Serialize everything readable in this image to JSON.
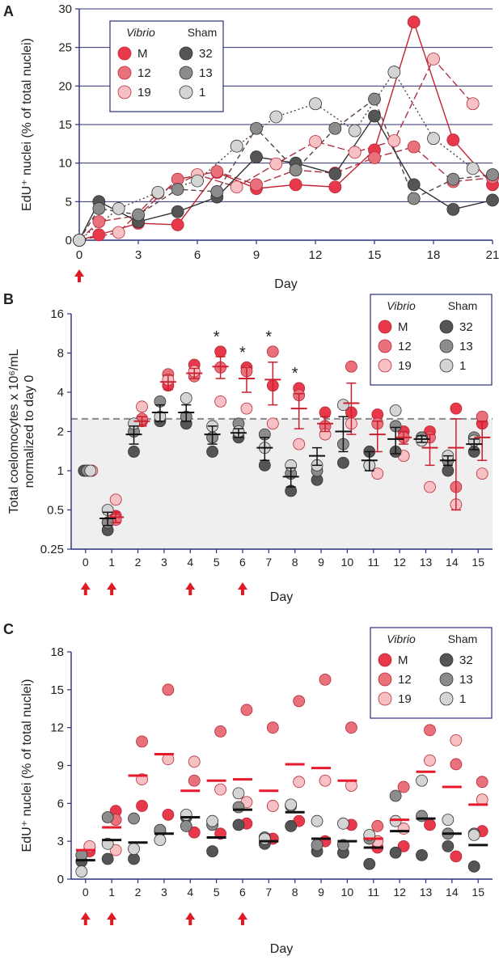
{
  "chart_data": [
    {
      "panel": "A",
      "type": "line",
      "xlabel": "Day",
      "ylabel": "EdU⁺ nuclei (% of total nuclei)",
      "xticks": [
        0,
        3,
        6,
        9,
        12,
        15,
        18,
        21
      ],
      "yticks": [
        0,
        5,
        10,
        15,
        20,
        25,
        30
      ],
      "xlim": [
        0,
        21
      ],
      "ylim": [
        0,
        30
      ],
      "grid": "horizontal",
      "legend": {
        "placement": "top-left",
        "groups": [
          {
            "title": "Vibrio",
            "entries": [
              "M",
              "12",
              "19"
            ]
          },
          {
            "title": "Sham",
            "entries": [
              "32",
              "13",
              "1"
            ]
          }
        ]
      },
      "arrows": [
        0
      ],
      "series": [
        {
          "name": "M",
          "group": "Vibrio",
          "color": "#e8394b",
          "dash": "solid",
          "x": [
            0,
            1,
            3,
            5,
            7,
            9,
            11,
            13,
            15,
            17,
            19,
            21
          ],
          "y": [
            0,
            0.7,
            2.2,
            2.0,
            8.8,
            6.7,
            7.2,
            6.9,
            11.7,
            28.3,
            13.0,
            7.2
          ]
        },
        {
          "name": "12",
          "group": "Vibrio",
          "color": "#e8717b",
          "dash": "long",
          "x": [
            0,
            1,
            3,
            5,
            7,
            9,
            11,
            13,
            15,
            17,
            19,
            21
          ],
          "y": [
            0,
            2.4,
            3.2,
            7.9,
            8.9,
            7.2,
            9.1,
            8.7,
            10.7,
            12.1,
            7.6,
            8.1
          ]
        },
        {
          "name": "19",
          "group": "Vibrio",
          "color": "#f7c1c4",
          "dash": "long",
          "x": [
            0,
            2,
            4,
            6,
            8,
            10,
            12,
            14,
            16,
            18,
            20
          ],
          "y": [
            0,
            1.0,
            6.1,
            8.5,
            6.9,
            9.9,
            12.8,
            11.4,
            12.9,
            23.5,
            17.7
          ]
        },
        {
          "name": "32",
          "group": "Sham",
          "color": "#555555",
          "dash": "solid",
          "x": [
            0,
            1,
            3,
            5,
            7,
            9,
            11,
            13,
            15,
            17,
            19,
            21
          ],
          "y": [
            0,
            5.0,
            2.4,
            3.7,
            5.6,
            10.8,
            10.0,
            8.6,
            16.1,
            7.2,
            4.0,
            5.2
          ]
        },
        {
          "name": "13",
          "group": "Sham",
          "color": "#8c8c8c",
          "dash": "dash",
          "x": [
            0,
            1,
            3,
            5,
            7,
            9,
            11,
            13,
            15,
            17,
            19,
            21
          ],
          "y": [
            0,
            4.1,
            3.3,
            6.6,
            6.3,
            14.5,
            9.1,
            14.5,
            18.3,
            5.4,
            7.9,
            8.5
          ]
        },
        {
          "name": "1",
          "group": "Sham",
          "color": "#d4d4d4",
          "dash": "dot",
          "x": [
            0,
            2,
            4,
            6,
            8,
            10,
            12,
            14,
            16,
            18,
            20
          ],
          "y": [
            0,
            4.1,
            6.2,
            7.7,
            12.2,
            16.0,
            17.7,
            14.2,
            21.8,
            13.2,
            9.3
          ]
        }
      ]
    },
    {
      "panel": "B",
      "type": "scatter",
      "xlabel": "Day",
      "ylabel": "Total coelomocytes x 10⁶/mL normalized to day 0",
      "ylabel_lines": [
        "Total coelomocytes x 10⁶/mL",
        "normalized to day 0"
      ],
      "yscale": "log2",
      "yticks": [
        0.25,
        0.5,
        1,
        2,
        4,
        8,
        16
      ],
      "ytick_labels": [
        "0.25",
        "0.5",
        "1",
        "2",
        "4",
        "8",
        "16"
      ],
      "ylim": [
        0.25,
        16
      ],
      "categories": [
        "0",
        "1",
        "2",
        "3",
        "4",
        "5",
        "6",
        "7",
        "8",
        "9",
        "10",
        "11",
        "12",
        "13",
        "14",
        "15"
      ],
      "threshold": 2.5,
      "shaded_below_threshold": true,
      "significance": [
        "5",
        "6",
        "7",
        "8"
      ],
      "arrows": [
        "0",
        "1",
        "4",
        "6"
      ],
      "legend": {
        "placement": "top-right",
        "groups": [
          {
            "title": "Vibrio",
            "entries": [
              "M",
              "12",
              "19"
            ]
          },
          {
            "title": "Sham",
            "entries": [
              "32",
              "13",
              "1"
            ]
          }
        ]
      },
      "series": [
        {
          "name": "M",
          "group": "Vibrio",
          "color": "#e8394b",
          "values": [
            1,
            0.45,
            2.4,
            4.5,
            6.5,
            8.2,
            6.2,
            4.5,
            4.3,
            2.8,
            2.8,
            2.7,
            2.0,
            2.0,
            3.0,
            2.3
          ]
        },
        {
          "name": "12",
          "group": "Vibrio",
          "color": "#e8717b",
          "values": [
            1,
            0.42,
            2.5,
            5.5,
            5.3,
            6.2,
            5.8,
            8.2,
            3.8,
            2.2,
            6.3,
            2.3,
            1.8,
            1.8,
            0.75,
            2.6
          ]
        },
        {
          "name": "19",
          "group": "Vibrio",
          "color": "#f7c1c4",
          "values": [
            1,
            0.6,
            3.1,
            5.0,
            5.8,
            3.4,
            3.0,
            2.3,
            1.6,
            1.9,
            2.3,
            0.95,
            1.3,
            0.75,
            0.55,
            0.95
          ]
        },
        {
          "name": "32",
          "group": "Sham",
          "color": "#555555",
          "values": [
            1,
            0.35,
            1.4,
            2.4,
            2.3,
            1.4,
            1.8,
            1.1,
            0.7,
            0.85,
            1.15,
            1.4,
            1.4,
            1.8,
            1.0,
            1.4
          ]
        },
        {
          "name": "13",
          "group": "Sham",
          "color": "#8c8c8c",
          "values": [
            1,
            0.4,
            2.0,
            3.4,
            2.6,
            1.8,
            2.3,
            1.9,
            0.95,
            1.0,
            1.6,
            1.1,
            2.2,
            1.8,
            1.2,
            1.8
          ]
        },
        {
          "name": "1",
          "group": "Sham",
          "color": "#d4d4d4",
          "values": [
            1,
            0.5,
            2.3,
            2.6,
            3.6,
            2.2,
            2.0,
            1.5,
            1.1,
            1.1,
            3.2,
            1.1,
            2.9,
            1.7,
            1.3,
            1.7
          ]
        }
      ],
      "means": [
        {
          "group": "Vibrio",
          "mean": [
            1,
            0.44,
            2.4,
            4.8,
            5.6,
            6.3,
            5.1,
            5.0,
            3.0,
            2.3,
            3.3,
            1.9,
            1.8,
            1.5,
            1.5,
            1.8
          ],
          "err": [
            0,
            0.04,
            0.2,
            0.6,
            0.5,
            1.2,
            1.1,
            1.8,
            0.9,
            0.3,
            1.4,
            0.5,
            0.2,
            0.4,
            1.0,
            0.6
          ]
        },
        {
          "group": "Sham",
          "mean": [
            1,
            0.43,
            1.9,
            2.8,
            2.8,
            1.9,
            1.95,
            1.5,
            0.9,
            1.3,
            2.0,
            1.2,
            1.75,
            1.75,
            1.2,
            1.6
          ],
          "err": [
            0,
            0.05,
            0.3,
            0.4,
            0.4,
            0.3,
            0.15,
            0.3,
            0.15,
            0.2,
            0.6,
            0.2,
            0.4,
            0.1,
            0.1,
            0.15
          ]
        }
      ]
    },
    {
      "panel": "C",
      "type": "scatter",
      "xlabel": "Day",
      "ylabel": "EdU⁺ nuclei (% of total nuclei)",
      "yticks": [
        0,
        3,
        6,
        9,
        12,
        15,
        18
      ],
      "ylim": [
        0,
        18
      ],
      "categories": [
        "0",
        "1",
        "2",
        "3",
        "4",
        "5",
        "6",
        "7",
        "8",
        "9",
        "10",
        "11",
        "12",
        "13",
        "14",
        "15"
      ],
      "arrows": [
        "0",
        "1",
        "4",
        "6"
      ],
      "legend": {
        "placement": "top-right",
        "groups": [
          {
            "title": "Vibrio",
            "entries": [
              "M",
              "12",
              "19"
            ]
          },
          {
            "title": "Sham",
            "entries": [
              "32",
              "13",
              "1"
            ]
          }
        ]
      },
      "series": [
        {
          "name": "M",
          "group": "Vibrio",
          "color": "#e8394b",
          "values": [
            2.2,
            5.4,
            5.8,
            5.1,
            3.7,
            3.6,
            4.4,
            3.2,
            4.6,
            3.0,
            4.3,
            2.5,
            2.6,
            4.3,
            1.8,
            3.8
          ]
        },
        {
          "name": "12",
          "group": "Vibrio",
          "color": "#e8717b",
          "values": [
            2.5,
            4.7,
            10.9,
            15.0,
            7.8,
            11.7,
            13.4,
            12.0,
            14.1,
            15.8,
            12.0,
            4.2,
            7.3,
            11.8,
            9.1,
            7.7
          ]
        },
        {
          "name": "19",
          "group": "Vibrio",
          "color": "#f7c1c4",
          "values": [
            2.6,
            2.3,
            7.9,
            9.5,
            9.3,
            7.1,
            6.1,
            5.8,
            7.7,
            7.8,
            7.4,
            3.0,
            4.0,
            9.4,
            11.0,
            6.3
          ]
        },
        {
          "name": "32",
          "group": "Sham",
          "color": "#555555",
          "values": [
            1.4,
            1.6,
            1.6,
            3.8,
            4.9,
            2.2,
            4.3,
            2.8,
            4.2,
            2.2,
            2.1,
            1.2,
            2.1,
            1.9,
            2.6,
            1.0
          ]
        },
        {
          "name": "13",
          "group": "Sham",
          "color": "#8c8c8c",
          "values": [
            1.9,
            4.9,
            4.8,
            3.9,
            4.2,
            4.3,
            5.7,
            3.3,
            5.8,
            2.7,
            2.7,
            3.2,
            6.6,
            5.0,
            3.6,
            3.6
          ]
        },
        {
          "name": "1",
          "group": "Sham",
          "color": "#d4d4d4",
          "values": [
            0.6,
            2.8,
            2.4,
            3.1,
            5.1,
            4.6,
            6.8,
            3.2,
            5.9,
            4.6,
            4.4,
            3.5,
            4.6,
            7.8,
            4.7,
            3.5
          ]
        }
      ],
      "means": [
        {
          "group": "Vibrio",
          "values": [
            2.3,
            4.1,
            8.2,
            9.9,
            7.0,
            7.8,
            7.9,
            7.0,
            9.1,
            8.8,
            7.8,
            3.2,
            4.7,
            8.5,
            7.3,
            5.9
          ]
        },
        {
          "group": "Sham",
          "values": [
            1.5,
            3.1,
            2.9,
            3.6,
            4.9,
            3.3,
            5.5,
            3.0,
            5.3,
            3.2,
            3.0,
            2.5,
            3.8,
            4.8,
            3.6,
            2.7
          ]
        }
      ]
    }
  ]
}
